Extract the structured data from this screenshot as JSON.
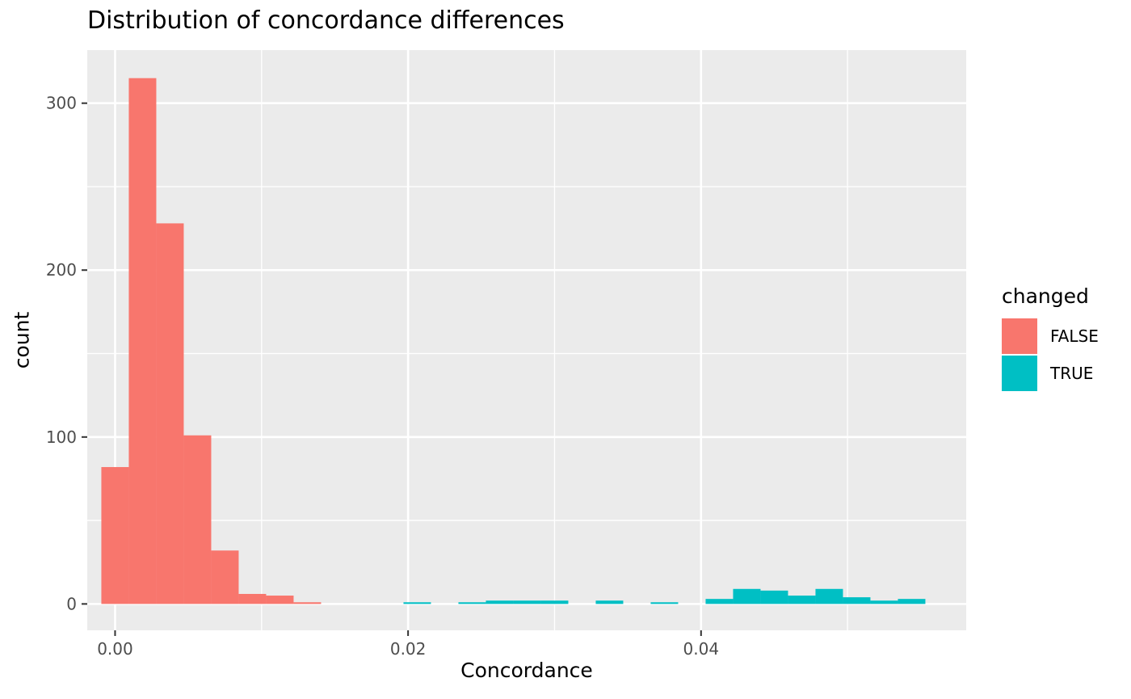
{
  "chart_data": {
    "type": "bar",
    "title": "Distribution of concordance differences",
    "xlabel": "Concordance",
    "ylabel": "count",
    "xlim": [
      -0.0019,
      0.0581
    ],
    "ylim": [
      -15.8,
      331.8
    ],
    "xticks": [
      0.0,
      0.02,
      0.04
    ],
    "xtick_labels": [
      "0.00",
      "0.02",
      "0.04"
    ],
    "yticks": [
      0,
      100,
      200,
      300
    ],
    "ytick_labels": [
      "0",
      "100",
      "200",
      "300"
    ],
    "bin_width": 0.001875,
    "legend_title": "changed",
    "legend_position": "right",
    "grid": true,
    "series": [
      {
        "name": "FALSE",
        "color": "#F8766D",
        "bins": [
          {
            "x": 0.0,
            "count": 82
          },
          {
            "x": 0.001875,
            "count": 315
          },
          {
            "x": 0.00375,
            "count": 228
          },
          {
            "x": 0.005625,
            "count": 101
          },
          {
            "x": 0.0075,
            "count": 32
          },
          {
            "x": 0.009375,
            "count": 6
          },
          {
            "x": 0.01125,
            "count": 5
          },
          {
            "x": 0.013125,
            "count": 1
          }
        ]
      },
      {
        "name": "TRUE",
        "color": "#00BFC4",
        "bins": [
          {
            "x": 0.020625,
            "count": 1
          },
          {
            "x": 0.024375,
            "count": 1
          },
          {
            "x": 0.02625,
            "count": 2
          },
          {
            "x": 0.028125,
            "count": 2
          },
          {
            "x": 0.03,
            "count": 2
          },
          {
            "x": 0.03375,
            "count": 2
          },
          {
            "x": 0.0375,
            "count": 1
          },
          {
            "x": 0.04125,
            "count": 3
          },
          {
            "x": 0.043125,
            "count": 9
          },
          {
            "x": 0.045,
            "count": 8
          },
          {
            "x": 0.046875,
            "count": 5
          },
          {
            "x": 0.04875,
            "count": 9
          },
          {
            "x": 0.050625,
            "count": 4
          },
          {
            "x": 0.0525,
            "count": 2
          },
          {
            "x": 0.054375,
            "count": 3
          }
        ]
      }
    ]
  }
}
